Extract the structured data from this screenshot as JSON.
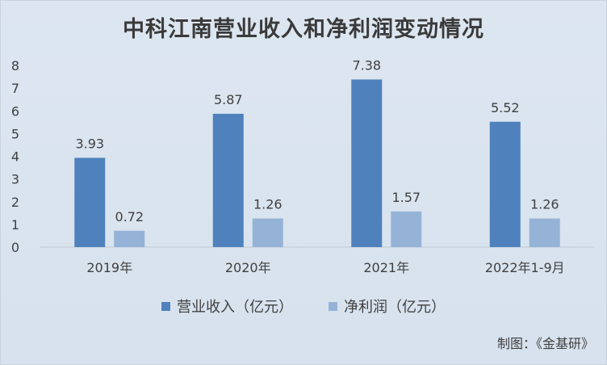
{
  "chart_data": {
    "type": "bar",
    "title": "中科江南营业收入和净利润变动情况",
    "categories": [
      "2019年",
      "2020年",
      "2021年",
      "2022年1-9月"
    ],
    "series": [
      {
        "name": "营业收入（亿元）",
        "values": [
          3.93,
          5.87,
          7.38,
          5.52
        ],
        "labels": [
          "3.93",
          "5.87",
          "7.38",
          "5.52"
        ],
        "color": "#4f81bd"
      },
      {
        "name": "净利润（亿元）",
        "values": [
          0.72,
          1.26,
          1.57,
          1.26
        ],
        "labels": [
          "0.72",
          "1.26",
          "1.57",
          "1.26"
        ],
        "color": "#95b3d7"
      }
    ],
    "yticks": [
      "0",
      "1",
      "2",
      "3",
      "4",
      "5",
      "6",
      "7",
      "8"
    ],
    "ylim": [
      0,
      8
    ],
    "grid": false,
    "legend_position": "bottom"
  },
  "source_note": "制图：《金基研》"
}
